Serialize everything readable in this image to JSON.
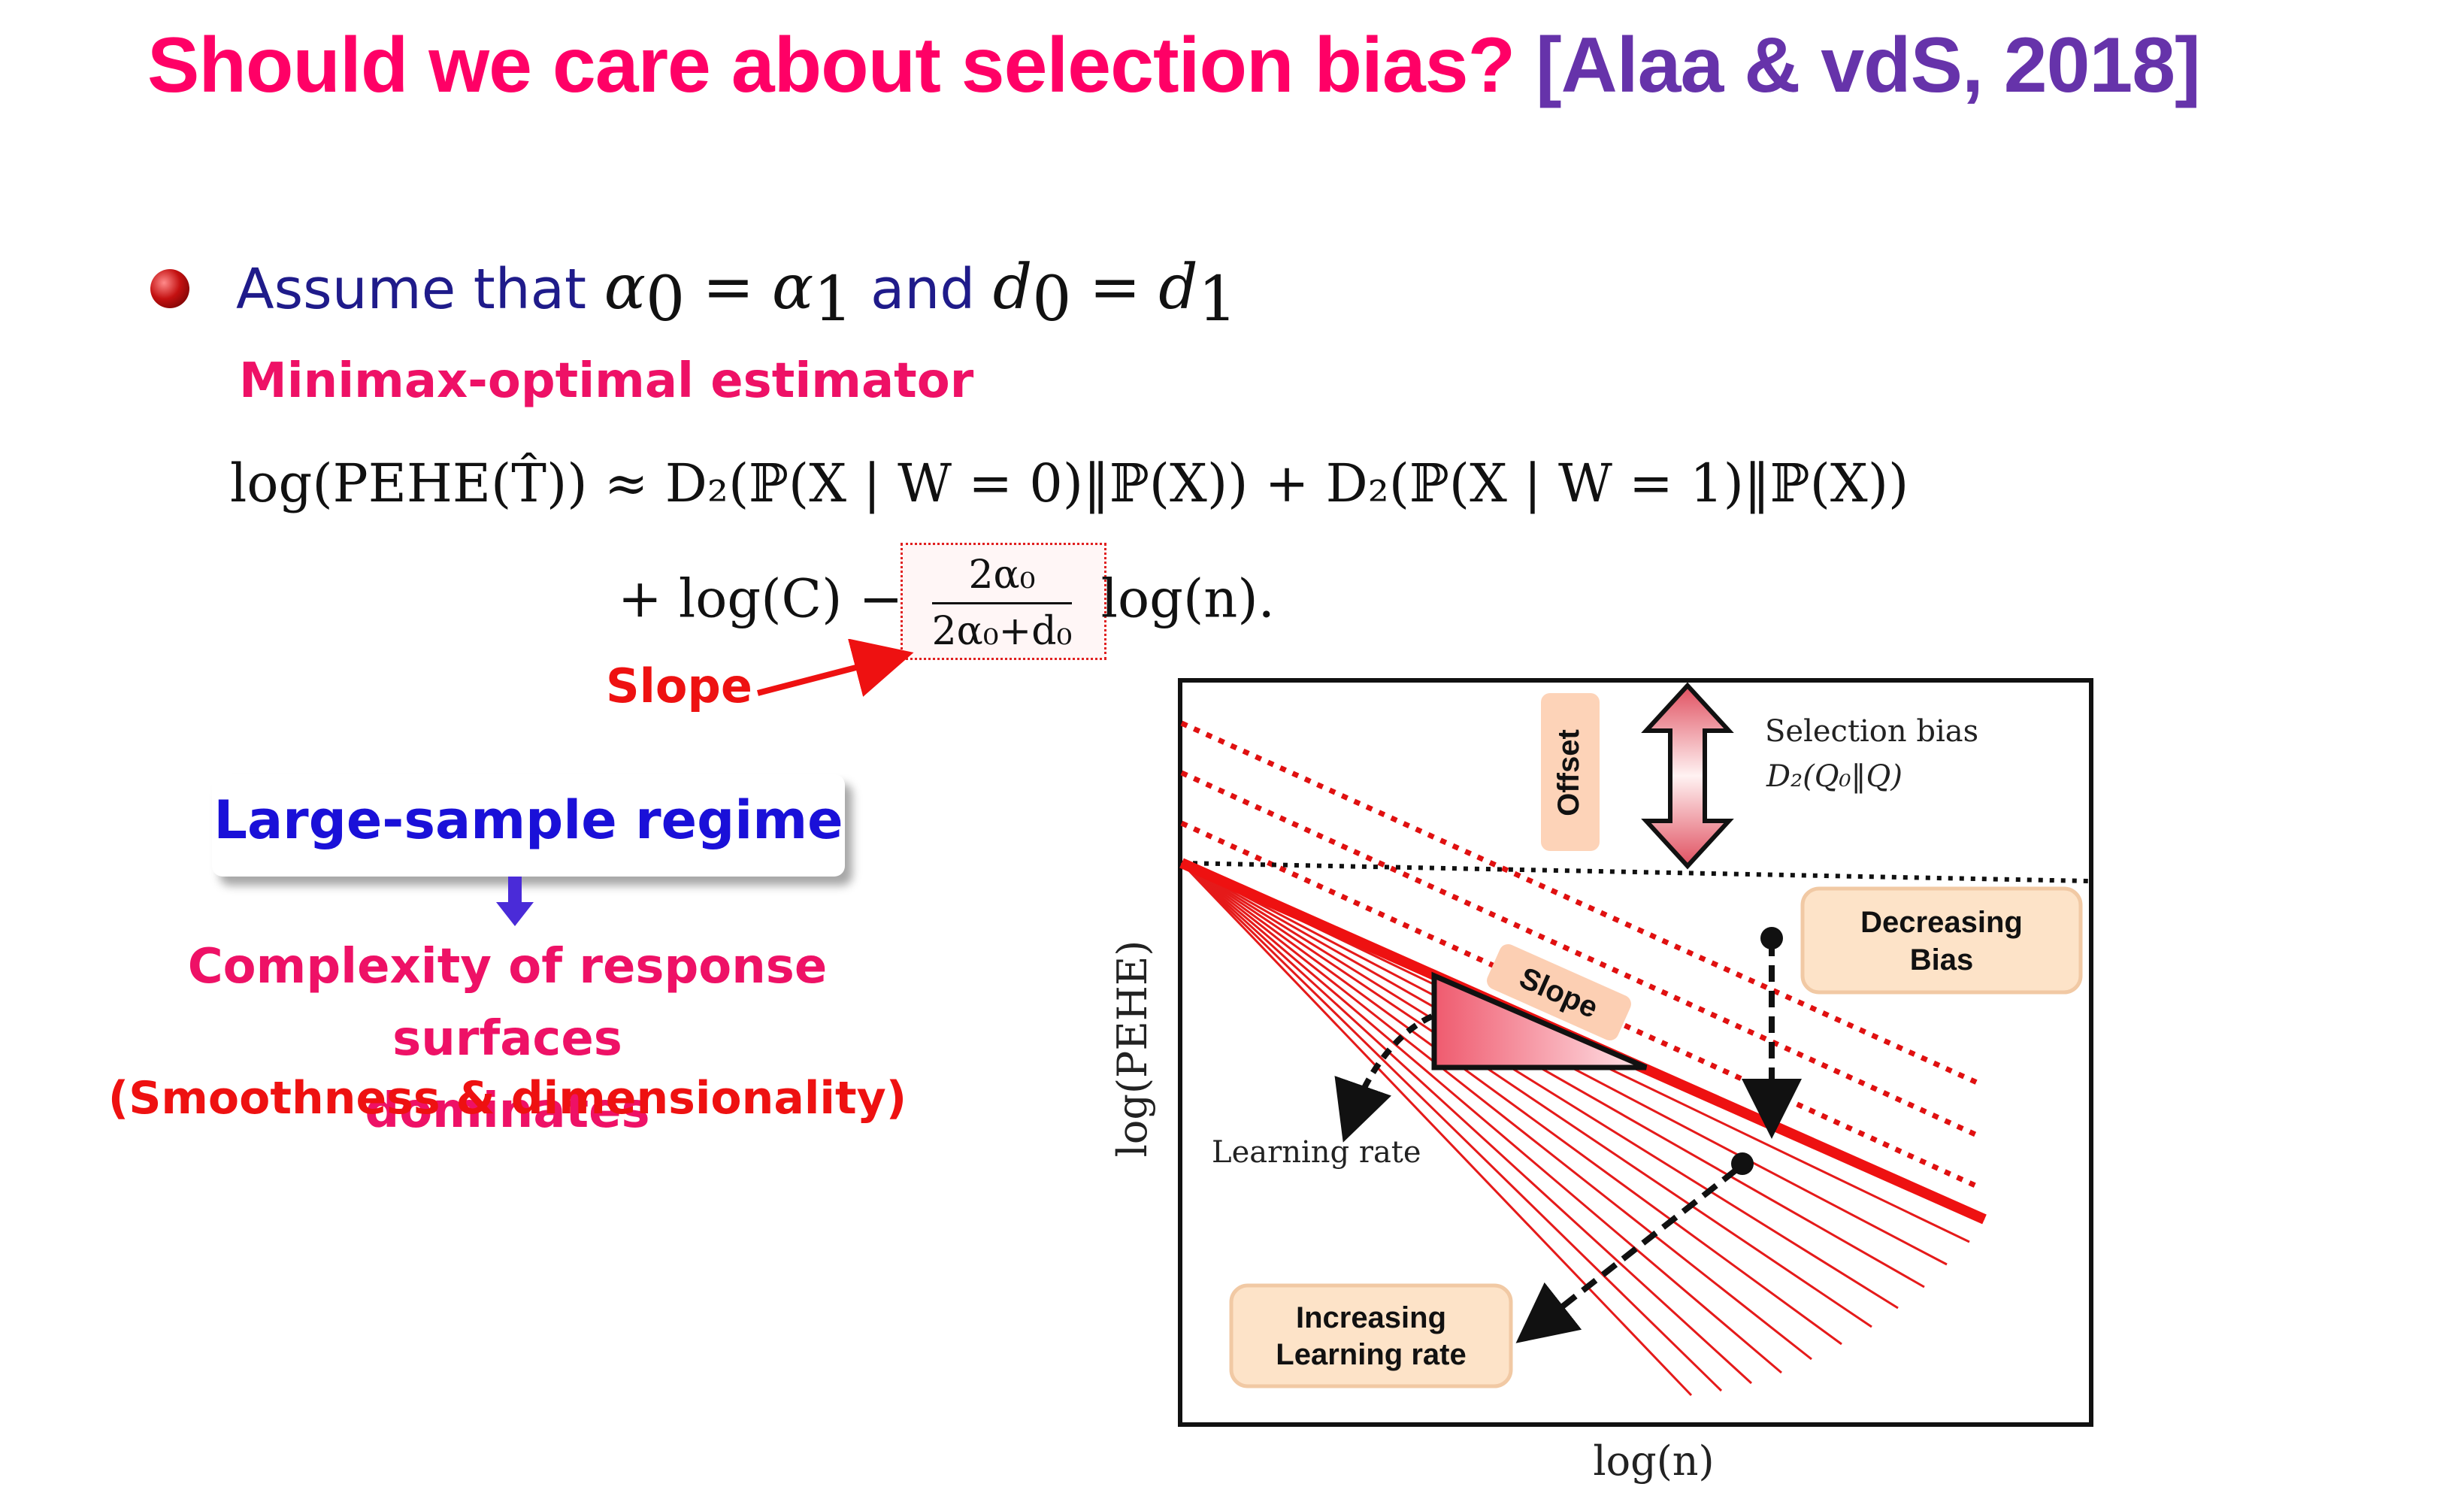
{
  "title": {
    "question": "Should we care about selection bias?",
    "citation": "[Alaa & vdS, 2018]"
  },
  "bullet": {
    "prefix": "Assume that",
    "alpha": "α",
    "eq_sign": "=",
    "and": "and",
    "d": "d",
    "sub0": "0",
    "sub1": "1"
  },
  "subtitle": "Minimax-optimal estimator",
  "equation": {
    "line1": "log(PEHE(T̂)) ≈ D₂(ℙ(X | W = 0)‖ℙ(X)) + D₂(ℙ(X | W = 1)‖ℙ(X))",
    "line2_start": "+ log(C) −",
    "frac_num": "2α₀",
    "frac_den": "2α₀+d₀",
    "line2_end": "log(n)."
  },
  "slope_label": "Slope",
  "regime": "Large-sample regime",
  "complexity_line1": "Complexity of response surfaces",
  "complexity_line2": "dominates",
  "smoothness": "(Smoothness & dimensionality)",
  "figure": {
    "offset_label": "Offset",
    "selection_bias": "Selection bias",
    "selection_bias_formula": "D₂(Q₀‖Q)",
    "decreasing_bias_1": "Decreasing",
    "decreasing_bias_2": "Bias",
    "slope_tag": "Slope",
    "learning_rate": "Learning rate",
    "increasing_1": "Increasing",
    "increasing_2": "Learning rate",
    "ylabel": "log(PEHE)",
    "xlabel": "log(n)"
  },
  "colors": {
    "title": "#ff0066",
    "citation": "#6633aa",
    "accent_red": "#ee1111",
    "regime_blue": "#1a10d8",
    "label_bg": "#fde3c8"
  }
}
